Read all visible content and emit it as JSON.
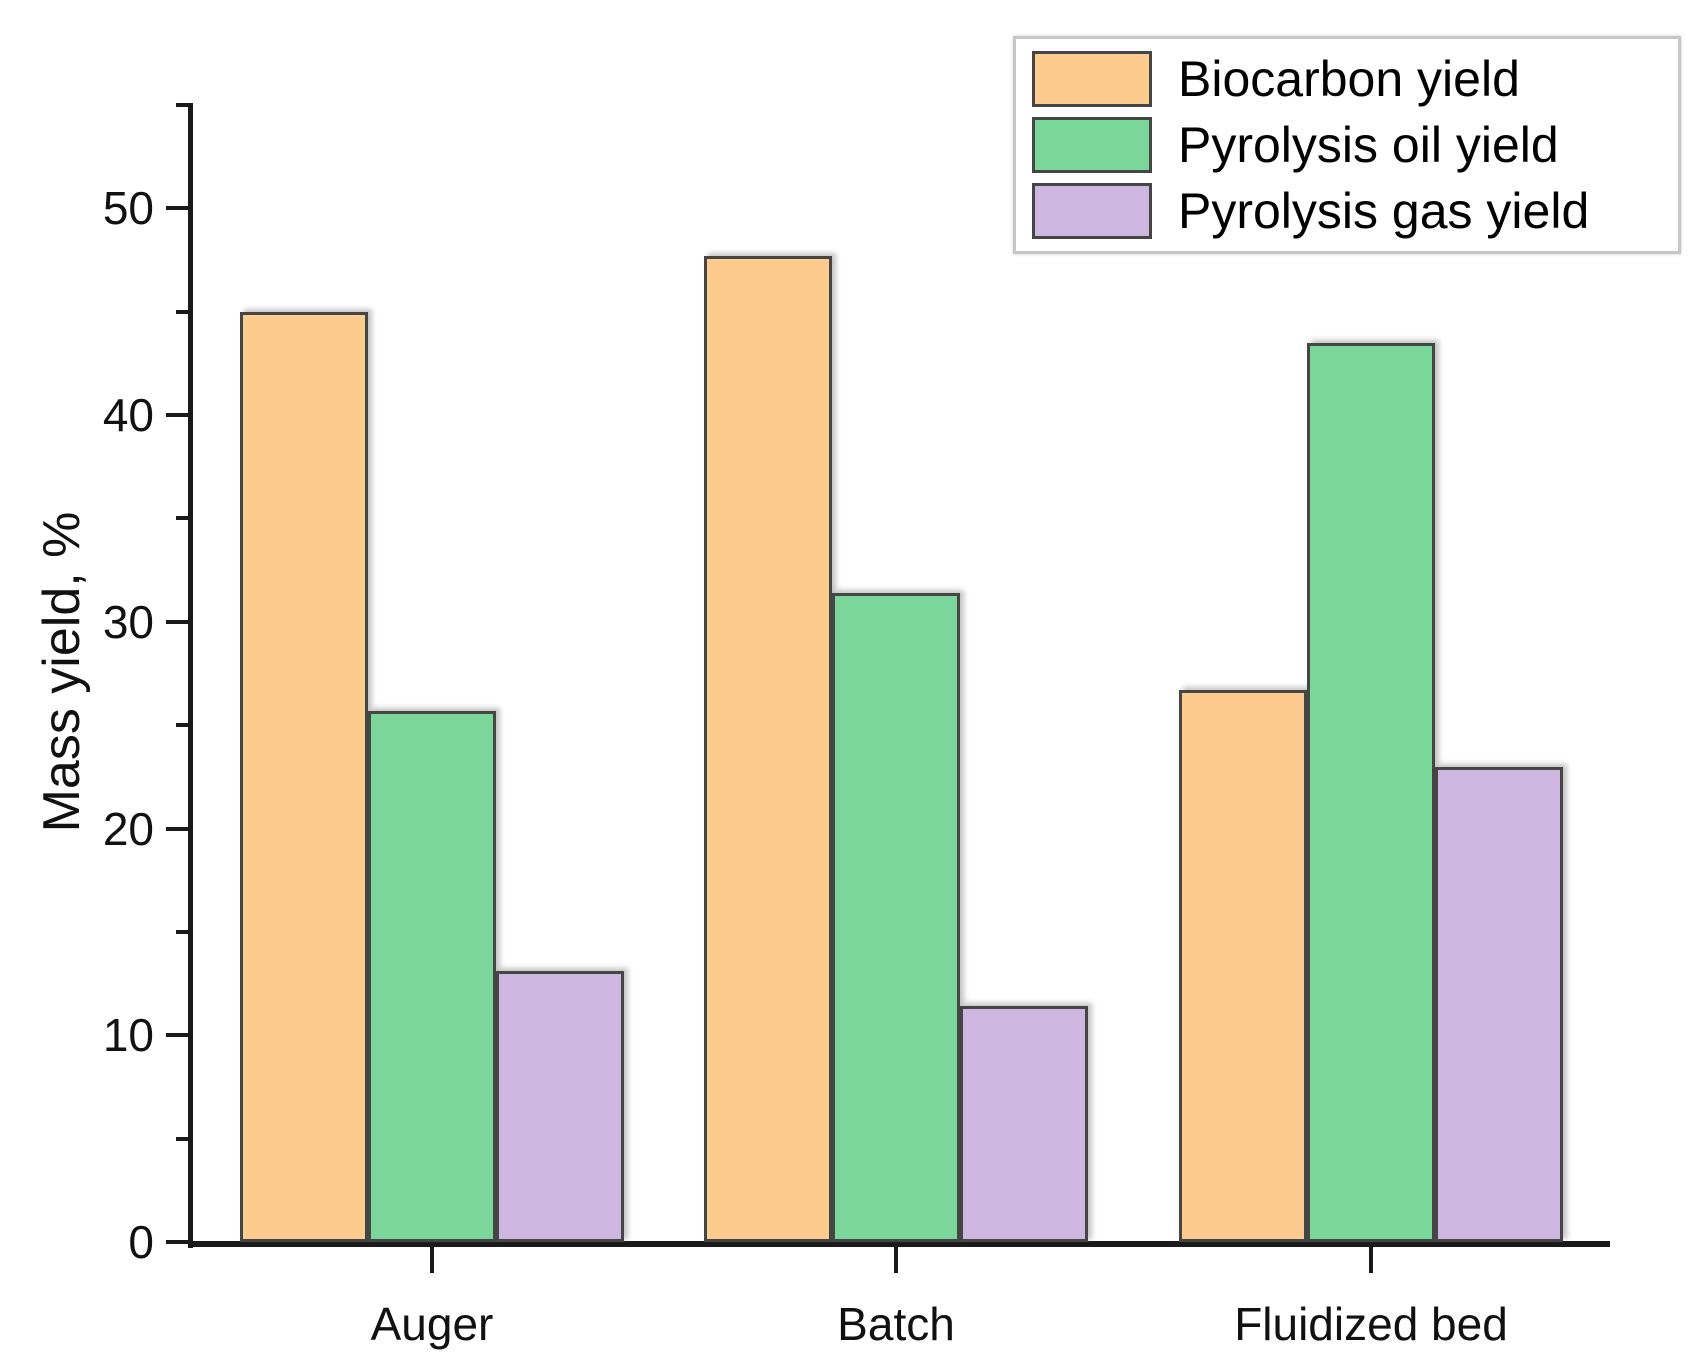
{
  "chart_data": {
    "type": "bar",
    "title": "",
    "categories": [
      "Auger",
      "Batch",
      "Fluidized bed"
    ],
    "series": [
      {
        "name": "Biocarbon yield",
        "color": "#FDCB8E",
        "values": [
          45.0,
          47.7,
          26.7
        ]
      },
      {
        "name": "Pyrolysis oil yield",
        "color": "#7BD69A",
        "values": [
          25.7,
          31.4,
          43.5
        ]
      },
      {
        "name": "Pyrolysis gas yield",
        "color": "#CDB6DF",
        "values": [
          13.1,
          11.4,
          23.0
        ]
      }
    ],
    "xlabel": "",
    "ylabel": "Mass yield, %",
    "ylim": [
      0,
      55
    ],
    "y_major_ticks": [
      0,
      10,
      20,
      30,
      40,
      50
    ],
    "y_minor_ticks": [
      5,
      15,
      25,
      35,
      45,
      55
    ],
    "grid": false,
    "legend_position": "top-right",
    "bar_border_color": "#454545",
    "axis_color": "#1a1a1a"
  }
}
